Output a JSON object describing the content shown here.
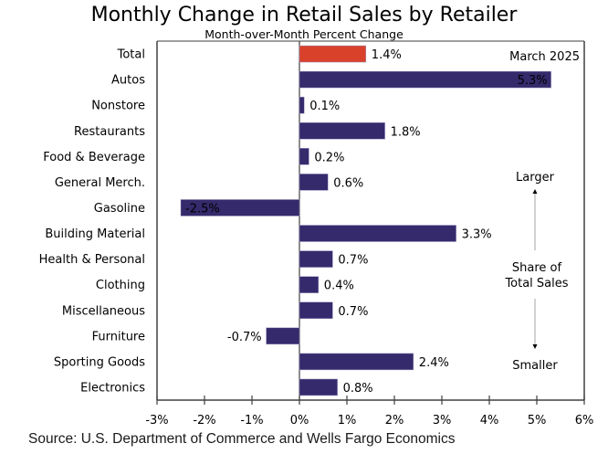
{
  "chart_data": {
    "type": "bar",
    "orientation": "horizontal",
    "title": "Monthly Change in Retail Sales by Retailer",
    "subtitle": "Month-over-Month Percent Change",
    "xlabel": "",
    "ylabel": "",
    "xlim": [
      -3,
      6
    ],
    "x_ticks": [
      "-3%",
      "-2%",
      "-1%",
      "0%",
      "1%",
      "2%",
      "3%",
      "4%",
      "5%",
      "6%"
    ],
    "x_tick_values": [
      -3,
      -2,
      -1,
      0,
      1,
      2,
      3,
      4,
      5,
      6
    ],
    "grid": false,
    "categories": [
      "Total",
      "Autos",
      "Nonstore",
      "Restaurants",
      "Food & Beverage",
      "General Merch.",
      "Gasoline",
      "Building Material",
      "Health & Personal",
      "Clothing",
      "Miscellaneous",
      "Furniture",
      "Sporting Goods",
      "Electronics"
    ],
    "values": [
      1.4,
      5.3,
      0.1,
      1.8,
      0.2,
      0.6,
      -2.5,
      3.3,
      0.7,
      0.4,
      0.7,
      -0.7,
      2.4,
      0.8
    ],
    "value_labels": [
      "1.4%",
      "5.3%",
      "0.1%",
      "1.8%",
      "0.2%",
      "0.6%",
      "-2.5%",
      "3.3%",
      "0.7%",
      "0.4%",
      "0.7%",
      "-0.7%",
      "2.4%",
      "0.8%"
    ],
    "highlight_category": "Total",
    "colors": {
      "highlight": "#d9412b",
      "bar": "#352a6b",
      "axis": "#404040",
      "frame": "#7f7f7f",
      "arrow": "#a6a6a6"
    },
    "annotations": {
      "date": "March 2025",
      "larger": "Larger",
      "share_line1": "Share of",
      "share_line2": "Total Sales",
      "smaller": "Smaller"
    },
    "source": "Source: U.S. Department of Commerce and Wells Fargo Economics"
  }
}
